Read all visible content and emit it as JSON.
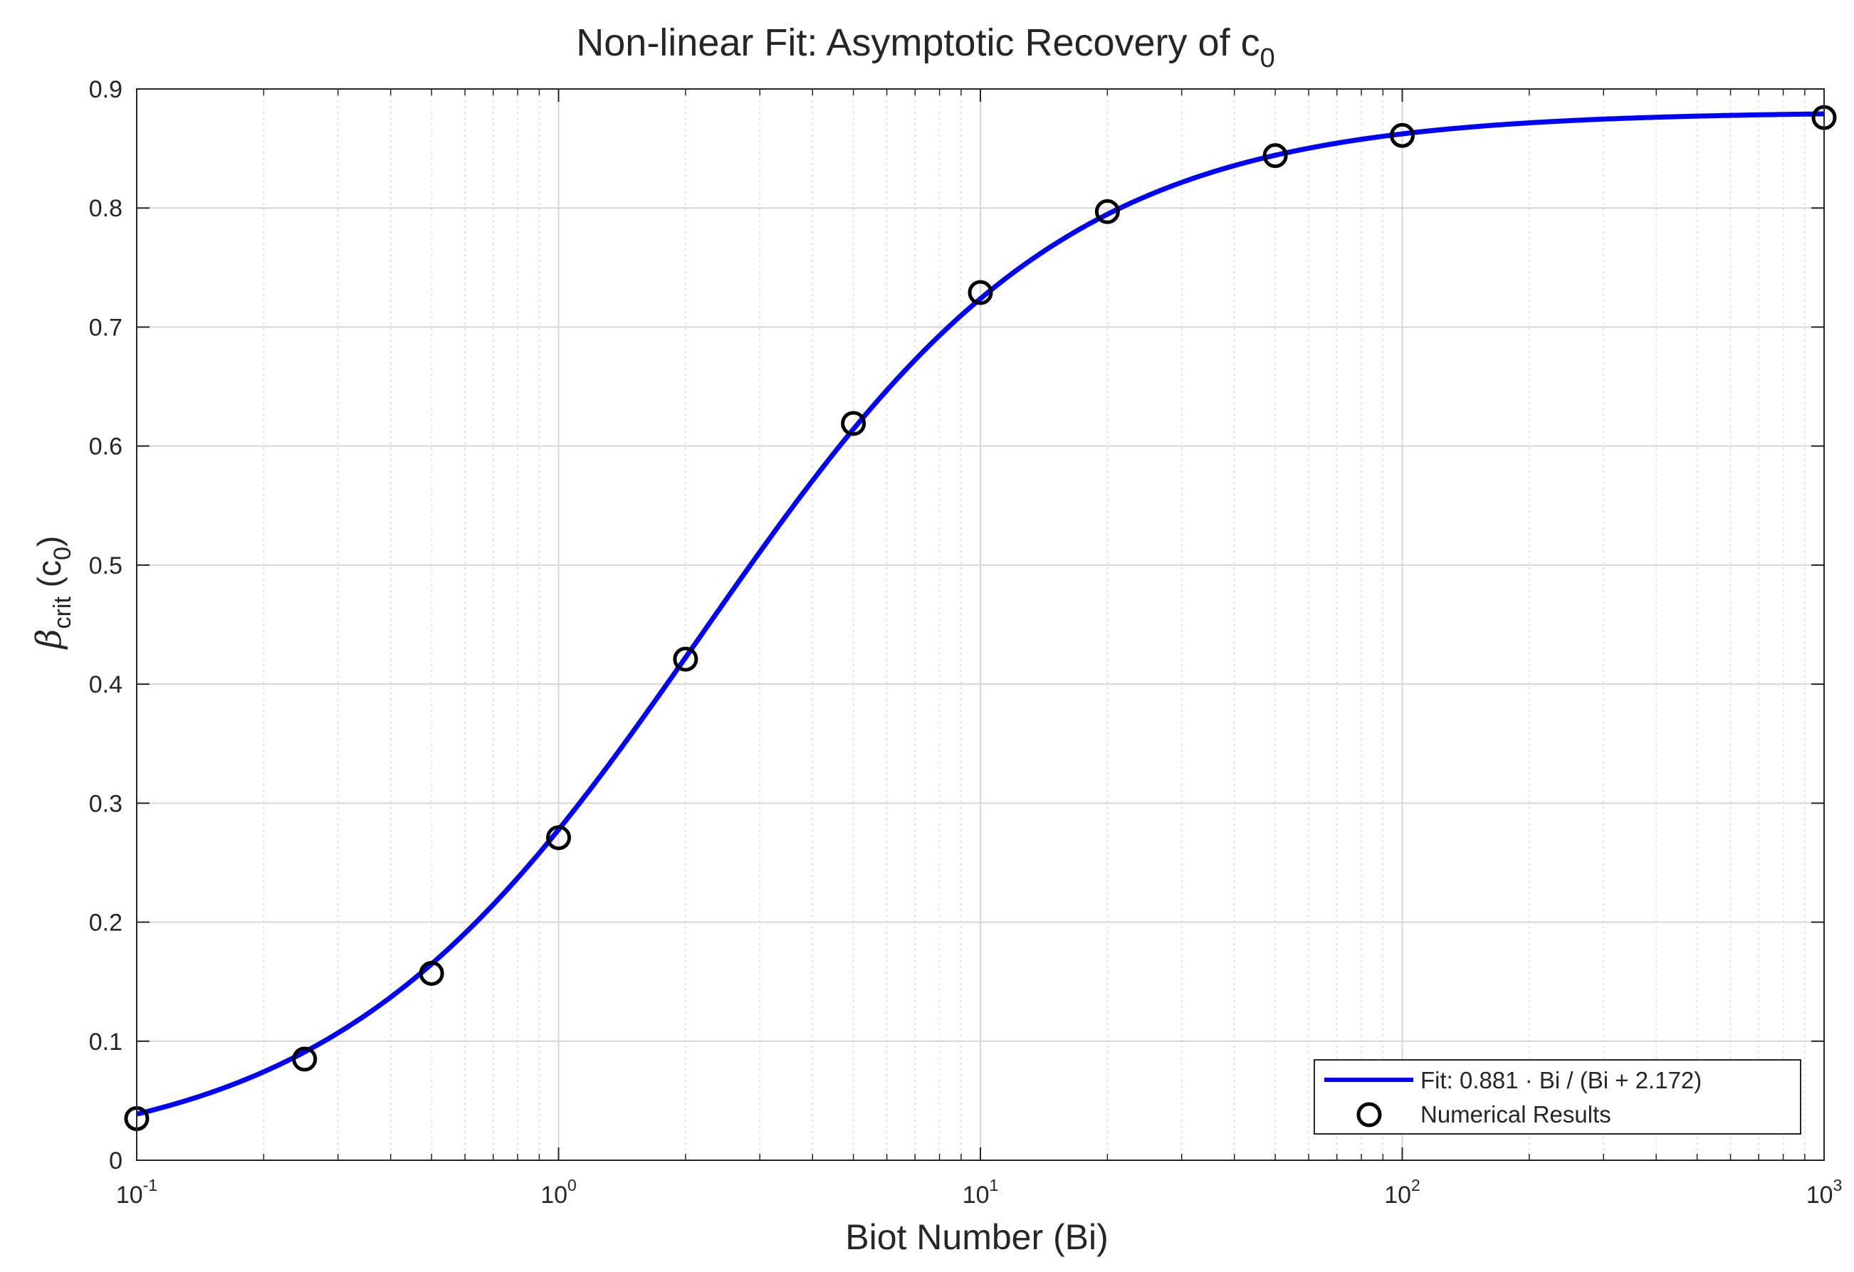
{
  "chart_data": {
    "type": "line",
    "title": {
      "main": "Non-linear Fit: Asymptotic Recovery of c",
      "subscript": "0"
    },
    "xlabel": "Biot Number (Bi)",
    "ylabel": {
      "symbol": "β",
      "subscript": "crit",
      "rest": " (c",
      "rest_subscript": "0",
      "close": ")"
    },
    "x_scale": "log",
    "xlim": [
      0.1,
      1000
    ],
    "ylim": [
      0,
      0.9
    ],
    "x_ticks": [
      {
        "value": 0.1,
        "base": "10",
        "exp": "-1"
      },
      {
        "value": 1,
        "base": "10",
        "exp": "0"
      },
      {
        "value": 10,
        "base": "10",
        "exp": "1"
      },
      {
        "value": 100,
        "base": "10",
        "exp": "2"
      },
      {
        "value": 1000,
        "base": "10",
        "exp": "3"
      }
    ],
    "y_ticks": [
      "0",
      "0.1",
      "0.2",
      "0.3",
      "0.4",
      "0.5",
      "0.6",
      "0.7",
      "0.8",
      "0.9"
    ],
    "grid": true,
    "minor_grid_x": true,
    "legend_position": "bottom-right",
    "series": [
      {
        "name": "Fit: 0.881 · Bi / (Bi + 2.172)",
        "kind": "line",
        "color": "#0000ff",
        "model": {
          "a": 0.881,
          "b": 2.172
        }
      },
      {
        "name": "Numerical Results",
        "kind": "scatter",
        "marker": "open-circle",
        "color": "#000000",
        "x": [
          0.1,
          0.25,
          0.5,
          1,
          2,
          5,
          10,
          20,
          50,
          100,
          1000
        ],
        "y": [
          0.035,
          0.085,
          0.157,
          0.271,
          0.421,
          0.619,
          0.729,
          0.797,
          0.844,
          0.861,
          0.876
        ]
      }
    ]
  }
}
